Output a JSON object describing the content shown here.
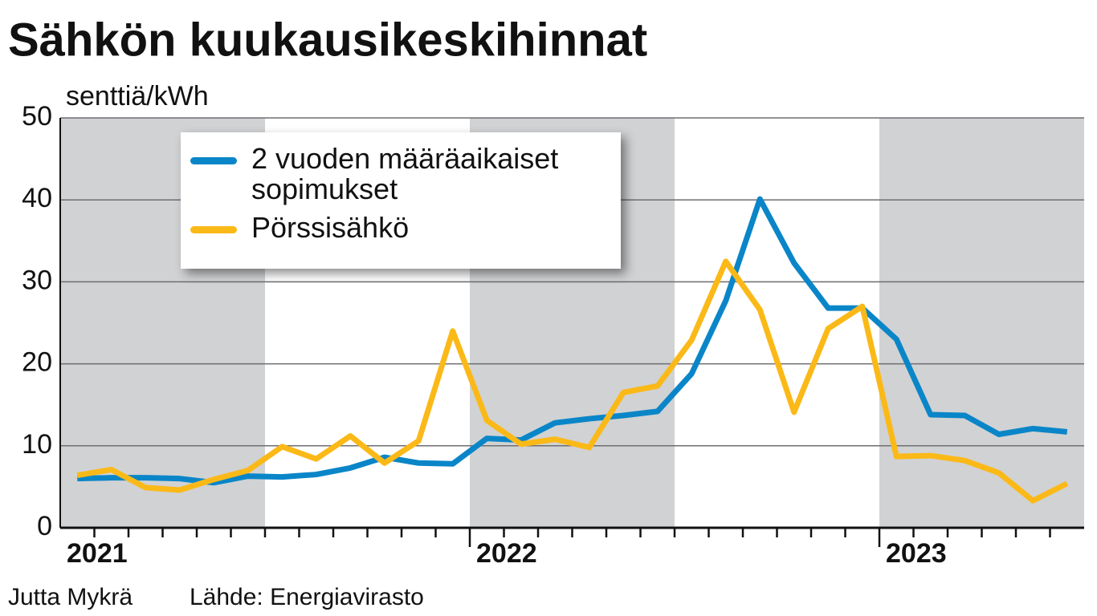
{
  "chart_data": {
    "type": "line",
    "title": "Sähkön kuukausikeskihinnat",
    "y_label": "senttiä/kWh",
    "credit": "Jutta Mykrä",
    "source": "Lähde: Energiavirasto",
    "categories": [
      "2021",
      null,
      null,
      null,
      null,
      null,
      null,
      null,
      null,
      null,
      null,
      null,
      "2022",
      null,
      null,
      null,
      null,
      null,
      null,
      null,
      null,
      null,
      null,
      null,
      "2023",
      null,
      null,
      null,
      null,
      null
    ],
    "series": [
      {
        "name": "2 vuoden määräaikaiset sopimukset",
        "color": "#0a86c8",
        "values": [
          6.0,
          6.1,
          6.1,
          6.0,
          5.5,
          6.3,
          6.2,
          6.5,
          7.3,
          8.6,
          7.9,
          7.8,
          10.9,
          10.7,
          12.8,
          13.3,
          13.7,
          14.2,
          18.8,
          27.7,
          40.1,
          32.3,
          26.8,
          26.8,
          23.0,
          13.8,
          13.7,
          11.4,
          12.1,
          11.7
        ]
      },
      {
        "name": "Pörssisähkö",
        "color": "#fbb918",
        "values": [
          6.4,
          7.1,
          4.9,
          4.6,
          5.9,
          7.0,
          9.9,
          8.4,
          11.2,
          7.9,
          10.6,
          24.0,
          13.1,
          10.2,
          10.8,
          9.8,
          16.5,
          17.3,
          22.9,
          32.5,
          26.6,
          14.1,
          24.3,
          27.0,
          8.7,
          8.8,
          8.2,
          6.7,
          3.3,
          5.4
        ]
      }
    ],
    "ylim": [
      0,
      50
    ],
    "yticks": [
      0,
      10,
      20,
      30,
      40,
      50
    ],
    "grid": true
  }
}
